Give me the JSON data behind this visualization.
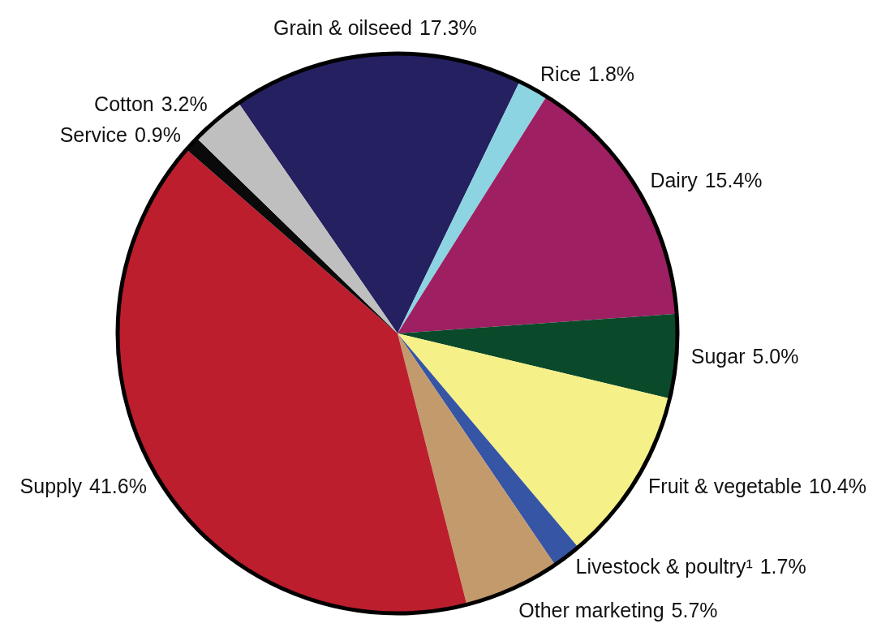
{
  "chart_data": {
    "type": "pie",
    "categories": [
      "Grain & oilseed",
      "Rice",
      "Dairy",
      "Sugar",
      "Fruit & vegetable",
      "Livestock & poultry¹",
      "Other marketing",
      "Supply",
      "Service",
      "Cotton"
    ],
    "values": [
      17.3,
      1.8,
      15.4,
      5.0,
      10.4,
      1.7,
      5.7,
      41.6,
      0.9,
      3.2
    ],
    "value_labels": [
      "17.3%",
      "1.8%",
      "15.4%",
      "5.0%",
      "10.4%",
      "1.7%",
      "5.7%",
      "41.6%",
      "0.9%",
      "3.2%"
    ],
    "colors": [
      "#252060",
      "#8cd4e2",
      "#9e1f62",
      "#0a4a2a",
      "#f6f089",
      "#3655a4",
      "#c39a6c",
      "#bc1e2d",
      "#0a0a0a",
      "#bfbfbf"
    ],
    "legend": false
  }
}
